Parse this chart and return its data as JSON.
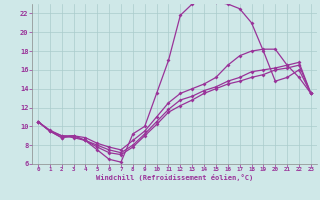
{
  "xlabel": "Windchill (Refroidissement éolien,°C)",
  "bg_color": "#cfe8e8",
  "line_color": "#993399",
  "grid_color": "#aacccc",
  "xlim": [
    -0.5,
    23.5
  ],
  "ylim": [
    6,
    23
  ],
  "xticks": [
    0,
    1,
    2,
    3,
    4,
    5,
    6,
    7,
    8,
    9,
    10,
    11,
    12,
    13,
    14,
    15,
    16,
    17,
    18,
    19,
    20,
    21,
    22,
    23
  ],
  "yticks": [
    6,
    8,
    10,
    12,
    14,
    16,
    18,
    20,
    22
  ],
  "curve1_x": [
    0,
    1,
    2,
    3,
    4,
    5,
    6,
    7,
    8,
    9,
    10,
    11,
    12,
    13,
    14,
    15,
    16,
    17,
    18,
    19,
    20,
    21,
    22,
    23
  ],
  "curve1_y": [
    10.5,
    9.6,
    9.0,
    8.8,
    8.5,
    7.5,
    6.5,
    6.2,
    9.2,
    10.0,
    13.5,
    17.0,
    21.8,
    23.0,
    23.5,
    23.2,
    23.0,
    22.5,
    21.0,
    18.0,
    14.8,
    15.2,
    16.0,
    13.5
  ],
  "curve2_x": [
    0,
    1,
    2,
    3,
    4,
    5,
    6,
    7,
    8,
    9,
    10,
    11,
    12,
    13,
    14,
    15,
    16,
    17,
    18,
    19,
    20,
    21,
    22,
    23
  ],
  "curve2_y": [
    10.5,
    9.5,
    8.8,
    9.0,
    8.8,
    8.2,
    7.8,
    7.5,
    8.5,
    9.5,
    11.0,
    12.5,
    13.5,
    14.0,
    14.5,
    15.2,
    16.5,
    17.5,
    18.0,
    18.2,
    18.2,
    16.5,
    15.2,
    13.5
  ],
  "curve3_x": [
    0,
    1,
    2,
    3,
    4,
    5,
    6,
    7,
    8,
    9,
    10,
    11,
    12,
    13,
    14,
    15,
    16,
    17,
    18,
    19,
    20,
    21,
    22,
    23
  ],
  "curve3_y": [
    10.5,
    9.5,
    9.0,
    9.0,
    8.5,
    8.0,
    7.5,
    7.2,
    8.0,
    9.2,
    10.5,
    11.8,
    12.8,
    13.2,
    13.8,
    14.2,
    14.8,
    15.2,
    15.8,
    16.0,
    16.2,
    16.5,
    16.8,
    13.5
  ],
  "curve4_x": [
    0,
    1,
    2,
    3,
    4,
    5,
    6,
    7,
    8,
    9,
    10,
    11,
    12,
    13,
    14,
    15,
    16,
    17,
    18,
    19,
    20,
    21,
    22,
    23
  ],
  "curve4_y": [
    10.5,
    9.5,
    8.8,
    9.0,
    8.5,
    7.8,
    7.2,
    7.0,
    7.8,
    9.0,
    10.2,
    11.5,
    12.2,
    12.8,
    13.5,
    14.0,
    14.5,
    14.8,
    15.2,
    15.5,
    16.0,
    16.2,
    16.5,
    13.5
  ]
}
